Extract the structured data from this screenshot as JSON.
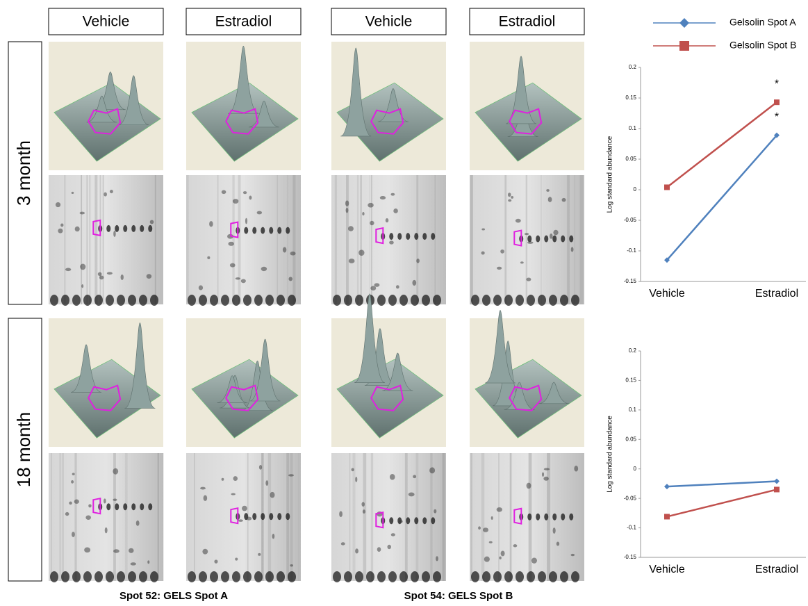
{
  "figure": {
    "column_headers": [
      "Vehicle",
      "Estradiol",
      "Vehicle",
      "Estradiol"
    ],
    "row_labels": [
      "3 month",
      "18 month"
    ],
    "captions": [
      "Spot 52: GELS Spot A",
      "Spot 54: GELS Spot B"
    ]
  },
  "chart_data": [
    {
      "type": "line",
      "y_label": "Log standard abundance",
      "categories": [
        "Vehicle",
        "Estradiol"
      ],
      "series": [
        {
          "name": "Gelsolin Spot A",
          "color": "#4f81bd",
          "marker": "diamond",
          "values": [
            -0.115,
            0.089
          ]
        },
        {
          "name": "Gelsolin Spot B",
          "color": "#c0504d",
          "marker": "square",
          "values": [
            0.004,
            0.143
          ]
        }
      ],
      "annotations": [
        "*",
        "*"
      ],
      "ylim": [
        -0.15,
        0.2
      ],
      "yticks": [
        -0.15,
        -0.1,
        -0.05,
        0,
        0.05,
        0.1,
        0.15,
        0.2
      ]
    },
    {
      "type": "line",
      "y_label": "Log standard abundance",
      "categories": [
        "Vehicle",
        "Estradiol"
      ],
      "series": [
        {
          "color": "#4f81bd",
          "marker": "diamond",
          "values": [
            -0.03,
            -0.021
          ]
        },
        {
          "color": "#c0504d",
          "marker": "square",
          "values": [
            -0.081,
            -0.035
          ]
        }
      ],
      "ylim": [
        -0.15,
        0.2
      ],
      "yticks": [
        -0.15,
        -0.1,
        -0.05,
        0,
        0.05,
        0.1,
        0.15,
        0.2
      ]
    }
  ]
}
